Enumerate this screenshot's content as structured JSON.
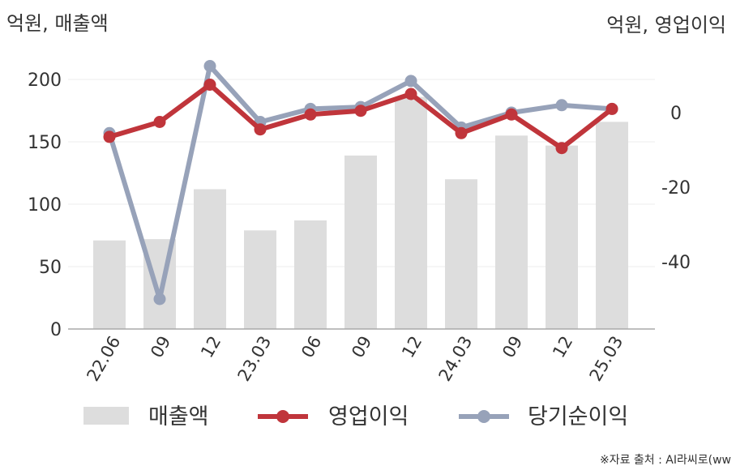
{
  "chart_data": {
    "type": "bar+line",
    "left_unit": "억원, 매출액",
    "right_unit": "억원, 영업이익",
    "categories": [
      "22.06",
      "09",
      "12",
      "23.03",
      "06",
      "09",
      "12",
      "24.03",
      "09",
      "12",
      "25.03"
    ],
    "bars": {
      "name": "매출액",
      "color": "#dddddd",
      "values": [
        71,
        72,
        112,
        79,
        87,
        139,
        186,
        120,
        155,
        147,
        166
      ]
    },
    "lines": [
      {
        "name": "영업이익",
        "color": "#c0353b",
        "values": [
          -6.5,
          -2.5,
          7.5,
          -4.5,
          -0.5,
          0.5,
          5,
          -5.5,
          -0.5,
          -9.5,
          1
        ]
      },
      {
        "name": "당기순이익",
        "color": "#97a2b9",
        "values": [
          -5.5,
          -50,
          12.5,
          -2.5,
          1,
          1.5,
          8.5,
          -4,
          0,
          2,
          1
        ]
      }
    ],
    "left_axis": {
      "min": 0,
      "max": 200,
      "ticks": [
        "0",
        "50",
        "100",
        "150",
        "200"
      ]
    },
    "right_axis": {
      "min": -58,
      "max": 13,
      "ticks": [
        "0",
        "-20",
        "-40"
      ]
    }
  },
  "legend": {
    "bar_label": "매출액",
    "line1_label": "영업이익",
    "line2_label": "당기순이익"
  },
  "source_text": "※자료 출처 : AI라씨로(ww"
}
